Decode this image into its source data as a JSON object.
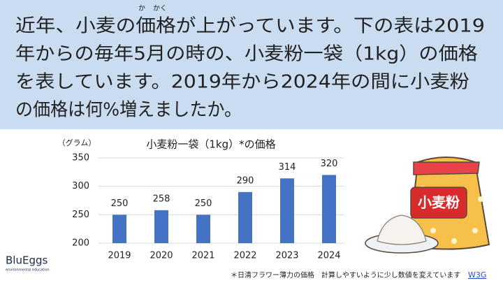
{
  "question": {
    "lines": [
      "近年、小麦の価格が上がっています。下の表は2019",
      "年からの毎年5月の時の、小麦粉一袋（1kg）の価格",
      "を表しています。2019年から2024年の間に小麦粉",
      "の価格は何%増えましたか。"
    ],
    "furigana": [
      "か",
      "かく"
    ]
  },
  "chart_data": {
    "type": "bar",
    "title": "小麦粉一袋（1kg）*の価格",
    "y_label": "（グラム）",
    "categories": [
      "2019",
      "2020",
      "2021",
      "2022",
      "2023",
      "2024"
    ],
    "values": [
      250,
      258,
      250,
      290,
      314,
      320
    ],
    "color": "#4472c4",
    "ylim": [
      200,
      350
    ],
    "yticks": [
      200,
      250,
      300,
      350
    ],
    "grid": true
  },
  "illustration_label": "小麦粉",
  "logo": {
    "name": "BluEggs",
    "tagline": "environmental education"
  },
  "footnote": "＊日清フラワー薄力の価格　計算しやすいように少し数値を変えています",
  "link": "W3G"
}
